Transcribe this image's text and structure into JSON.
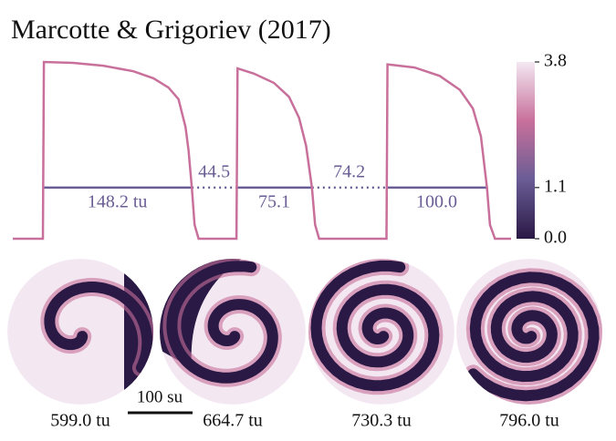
{
  "chart_data": {
    "type": "line",
    "title": "Marcotte & Grigoriev (2017)",
    "trace": {
      "color": "#c8709b",
      "x": [
        0,
        30,
        31,
        60,
        90,
        120,
        140,
        155,
        165,
        172,
        175,
        178.2,
        181,
        185,
        222.7,
        223.7,
        240,
        260,
        275,
        285,
        292,
        297.8,
        301,
        305,
        372,
        373,
        400,
        425,
        445,
        458,
        466,
        472,
        475,
        480,
        496
      ],
      "values": [
        0,
        0,
        3.8,
        3.78,
        3.72,
        3.6,
        3.45,
        3.25,
        3.0,
        2.4,
        1.9,
        1.1,
        0.3,
        0,
        0,
        3.66,
        3.55,
        3.35,
        3.05,
        2.6,
        2.0,
        1.1,
        0.3,
        0,
        0,
        3.75,
        3.68,
        3.5,
        3.2,
        2.8,
        2.2,
        1.1,
        0.3,
        0,
        0
      ]
    },
    "xlim": [
      0,
      496
    ],
    "ylim": [
      0,
      3.8
    ],
    "threshold": 1.1,
    "threshold_color": "#6a5d95",
    "apd": {
      "starts": [
        30,
        222.7,
        372
      ],
      "values": [
        148.2,
        75.1,
        100.0
      ],
      "value_labels": [
        "148.2 tu",
        "75.1",
        "100.0"
      ]
    },
    "di": {
      "values": [
        44.5,
        74.2
      ],
      "value_labels": [
        "44.5",
        "74.2"
      ]
    },
    "colorbar": {
      "lim": [
        0,
        3.8
      ],
      "ticks": [
        3.8,
        1.1,
        {
          "value": 0,
          "label": "0.0"
        }
      ],
      "colors": [
        "#2a1845",
        "#6a5d95",
        "#c8709b",
        "#f3e8f2"
      ]
    }
  },
  "snapshots": {
    "labels": [
      "599.0 tu",
      "664.7 tu",
      "730.3 tu",
      "796.0 tu"
    ],
    "scale_bar": "100 su"
  }
}
